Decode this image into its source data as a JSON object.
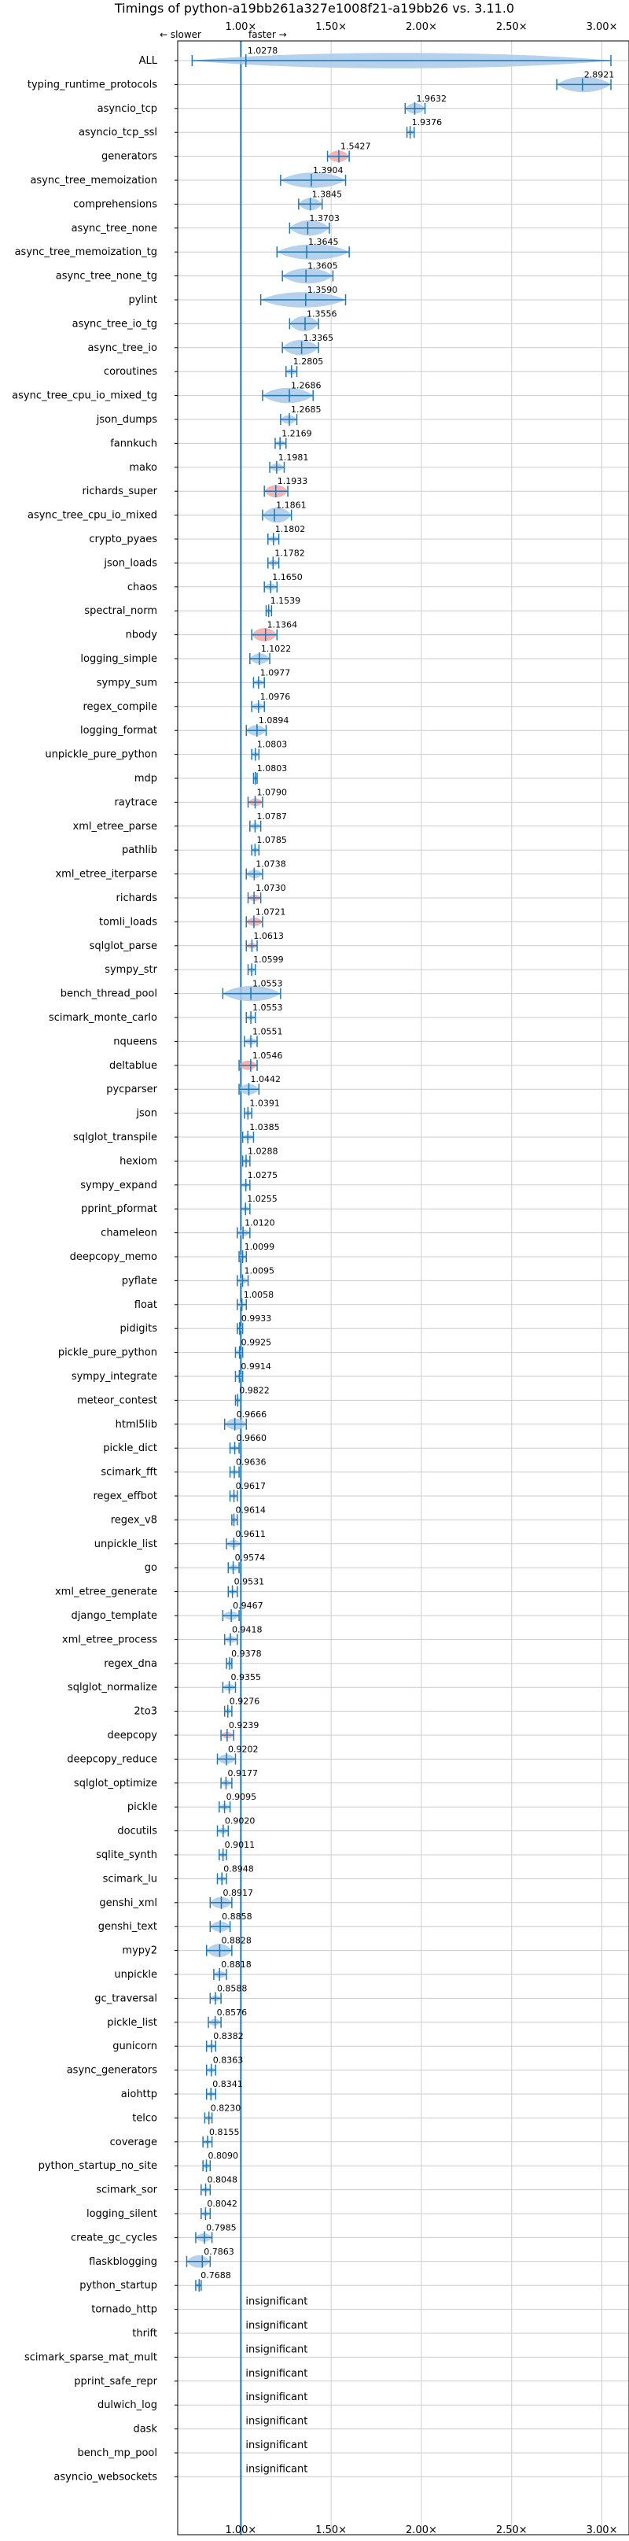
{
  "chart_data": {
    "type": "violin",
    "title": "Timings of python-a19bb261a327e1008f21-a19bb26 vs. 3.11.0",
    "direction_slower": "← slower",
    "direction_faster": "faster →",
    "xlim": [
      0.65,
      3.15
    ],
    "xticks": [
      1.0,
      1.5,
      2.0,
      2.5,
      3.0
    ],
    "xtick_labels": [
      "1.00×",
      "1.50×",
      "2.00×",
      "2.50×",
      "3.00×"
    ],
    "grid": true,
    "colors": {
      "faster": "#a8c9e8",
      "slower": "#f4a6a6",
      "stroke": "#1f77b4",
      "reference": "#1f77b4"
    },
    "benchmarks": [
      {
        "name": "ALL",
        "value": 1.0278,
        "label": "1.0278",
        "min": 0.73,
        "max": 3.05,
        "kind": "faster"
      },
      {
        "name": "typing_runtime_protocols",
        "value": 2.8921,
        "label": "2.8921",
        "min": 2.75,
        "max": 3.05,
        "kind": "faster"
      },
      {
        "name": "asyncio_tcp",
        "value": 1.9632,
        "label": "1.9632",
        "min": 1.91,
        "max": 2.02,
        "kind": "faster"
      },
      {
        "name": "asyncio_tcp_ssl",
        "value": 1.9376,
        "label": "1.9376",
        "min": 1.92,
        "max": 1.96,
        "kind": "faster"
      },
      {
        "name": "generators",
        "value": 1.5427,
        "label": "1.5427",
        "min": 1.48,
        "max": 1.6,
        "kind": "slower"
      },
      {
        "name": "async_tree_memoization",
        "value": 1.3904,
        "label": "1.3904",
        "min": 1.22,
        "max": 1.58,
        "kind": "faster"
      },
      {
        "name": "comprehensions",
        "value": 1.3845,
        "label": "1.3845",
        "min": 1.32,
        "max": 1.45,
        "kind": "faster"
      },
      {
        "name": "async_tree_none",
        "value": 1.3703,
        "label": "1.3703",
        "min": 1.27,
        "max": 1.49,
        "kind": "faster"
      },
      {
        "name": "async_tree_memoization_tg",
        "value": 1.3645,
        "label": "1.3645",
        "min": 1.2,
        "max": 1.6,
        "kind": "faster"
      },
      {
        "name": "async_tree_none_tg",
        "value": 1.3605,
        "label": "1.3605",
        "min": 1.23,
        "max": 1.51,
        "kind": "faster"
      },
      {
        "name": "pylint",
        "value": 1.359,
        "label": "1.3590",
        "min": 1.11,
        "max": 1.58,
        "kind": "faster"
      },
      {
        "name": "async_tree_io_tg",
        "value": 1.3556,
        "label": "1.3556",
        "min": 1.27,
        "max": 1.43,
        "kind": "faster"
      },
      {
        "name": "async_tree_io",
        "value": 1.3365,
        "label": "1.3365",
        "min": 1.23,
        "max": 1.43,
        "kind": "faster"
      },
      {
        "name": "coroutines",
        "value": 1.2805,
        "label": "1.2805",
        "min": 1.25,
        "max": 1.31,
        "kind": "faster"
      },
      {
        "name": "async_tree_cpu_io_mixed_tg",
        "value": 1.2686,
        "label": "1.2686",
        "min": 1.12,
        "max": 1.4,
        "kind": "faster"
      },
      {
        "name": "json_dumps",
        "value": 1.2685,
        "label": "1.2685",
        "min": 1.22,
        "max": 1.31,
        "kind": "faster"
      },
      {
        "name": "fannkuch",
        "value": 1.2169,
        "label": "1.2169",
        "min": 1.19,
        "max": 1.25,
        "kind": "faster"
      },
      {
        "name": "mako",
        "value": 1.1981,
        "label": "1.1981",
        "min": 1.16,
        "max": 1.24,
        "kind": "faster"
      },
      {
        "name": "richards_super",
        "value": 1.1933,
        "label": "1.1933",
        "min": 1.13,
        "max": 1.26,
        "kind": "slower"
      },
      {
        "name": "async_tree_cpu_io_mixed",
        "value": 1.1861,
        "label": "1.1861",
        "min": 1.12,
        "max": 1.28,
        "kind": "faster"
      },
      {
        "name": "crypto_pyaes",
        "value": 1.1802,
        "label": "1.1802",
        "min": 1.15,
        "max": 1.21,
        "kind": "faster"
      },
      {
        "name": "json_loads",
        "value": 1.1782,
        "label": "1.1782",
        "min": 1.15,
        "max": 1.21,
        "kind": "faster"
      },
      {
        "name": "chaos",
        "value": 1.165,
        "label": "1.1650",
        "min": 1.13,
        "max": 1.2,
        "kind": "faster"
      },
      {
        "name": "spectral_norm",
        "value": 1.1539,
        "label": "1.1539",
        "min": 1.14,
        "max": 1.17,
        "kind": "faster"
      },
      {
        "name": "nbody",
        "value": 1.1364,
        "label": "1.1364",
        "min": 1.06,
        "max": 1.2,
        "kind": "slower"
      },
      {
        "name": "logging_simple",
        "value": 1.1022,
        "label": "1.1022",
        "min": 1.05,
        "max": 1.16,
        "kind": "faster"
      },
      {
        "name": "sympy_sum",
        "value": 1.0977,
        "label": "1.0977",
        "min": 1.07,
        "max": 1.13,
        "kind": "faster"
      },
      {
        "name": "regex_compile",
        "value": 1.0976,
        "label": "1.0976",
        "min": 1.06,
        "max": 1.13,
        "kind": "faster"
      },
      {
        "name": "logging_format",
        "value": 1.0894,
        "label": "1.0894",
        "min": 1.03,
        "max": 1.14,
        "kind": "faster"
      },
      {
        "name": "unpickle_pure_python",
        "value": 1.0803,
        "label": "1.0803",
        "min": 1.06,
        "max": 1.1,
        "kind": "faster"
      },
      {
        "name": "mdp",
        "value": 1.0803,
        "label": "1.0803",
        "min": 1.07,
        "max": 1.09,
        "kind": "faster"
      },
      {
        "name": "raytrace",
        "value": 1.079,
        "label": "1.0790",
        "min": 1.04,
        "max": 1.12,
        "kind": "slower"
      },
      {
        "name": "xml_etree_parse",
        "value": 1.0787,
        "label": "1.0787",
        "min": 1.05,
        "max": 1.11,
        "kind": "faster"
      },
      {
        "name": "pathlib",
        "value": 1.0785,
        "label": "1.0785",
        "min": 1.06,
        "max": 1.1,
        "kind": "faster"
      },
      {
        "name": "xml_etree_iterparse",
        "value": 1.0738,
        "label": "1.0738",
        "min": 1.03,
        "max": 1.12,
        "kind": "faster"
      },
      {
        "name": "richards",
        "value": 1.073,
        "label": "1.0730",
        "min": 1.04,
        "max": 1.11,
        "kind": "slower"
      },
      {
        "name": "tomli_loads",
        "value": 1.0721,
        "label": "1.0721",
        "min": 1.03,
        "max": 1.12,
        "kind": "slower"
      },
      {
        "name": "sqlglot_parse",
        "value": 1.0613,
        "label": "1.0613",
        "min": 1.03,
        "max": 1.09,
        "kind": "slower"
      },
      {
        "name": "sympy_str",
        "value": 1.0599,
        "label": "1.0599",
        "min": 1.04,
        "max": 1.08,
        "kind": "faster"
      },
      {
        "name": "bench_thread_pool",
        "value": 1.0553,
        "label": "1.0553",
        "min": 0.9,
        "max": 1.22,
        "kind": "faster"
      },
      {
        "name": "scimark_monte_carlo",
        "value": 1.0553,
        "label": "1.0553",
        "min": 1.03,
        "max": 1.08,
        "kind": "faster"
      },
      {
        "name": "nqueens",
        "value": 1.0551,
        "label": "1.0551",
        "min": 1.02,
        "max": 1.09,
        "kind": "faster"
      },
      {
        "name": "deltablue",
        "value": 1.0546,
        "label": "1.0546",
        "min": 0.99,
        "max": 1.09,
        "kind": "slower"
      },
      {
        "name": "pycparser",
        "value": 1.0442,
        "label": "1.0442",
        "min": 0.99,
        "max": 1.1,
        "kind": "faster"
      },
      {
        "name": "json",
        "value": 1.0391,
        "label": "1.0391",
        "min": 1.02,
        "max": 1.06,
        "kind": "faster"
      },
      {
        "name": "sqlglot_transpile",
        "value": 1.0385,
        "label": "1.0385",
        "min": 1.01,
        "max": 1.07,
        "kind": "faster"
      },
      {
        "name": "hexiom",
        "value": 1.0288,
        "label": "1.0288",
        "min": 1.01,
        "max": 1.05,
        "kind": "faster"
      },
      {
        "name": "sympy_expand",
        "value": 1.0275,
        "label": "1.0275",
        "min": 1.0,
        "max": 1.05,
        "kind": "faster"
      },
      {
        "name": "pprint_pformat",
        "value": 1.0255,
        "label": "1.0255",
        "min": 1.0,
        "max": 1.05,
        "kind": "faster"
      },
      {
        "name": "chameleon",
        "value": 1.012,
        "label": "1.0120",
        "min": 0.98,
        "max": 1.05,
        "kind": "faster"
      },
      {
        "name": "deepcopy_memo",
        "value": 1.0099,
        "label": "1.0099",
        "min": 0.99,
        "max": 1.03,
        "kind": "faster"
      },
      {
        "name": "pyflate",
        "value": 1.0095,
        "label": "1.0095",
        "min": 0.98,
        "max": 1.04,
        "kind": "faster"
      },
      {
        "name": "float",
        "value": 1.0058,
        "label": "1.0058",
        "min": 0.98,
        "max": 1.03,
        "kind": "faster"
      },
      {
        "name": "pidigits",
        "value": 0.9933,
        "label": "0.9933",
        "min": 0.98,
        "max": 1.01,
        "kind": "faster"
      },
      {
        "name": "pickle_pure_python",
        "value": 0.9925,
        "label": "0.9925",
        "min": 0.97,
        "max": 1.01,
        "kind": "faster"
      },
      {
        "name": "sympy_integrate",
        "value": 0.9914,
        "label": "0.9914",
        "min": 0.97,
        "max": 1.01,
        "kind": "faster"
      },
      {
        "name": "meteor_contest",
        "value": 0.9822,
        "label": "0.9822",
        "min": 0.97,
        "max": 1.0,
        "kind": "faster"
      },
      {
        "name": "html5lib",
        "value": 0.9666,
        "label": "0.9666",
        "min": 0.91,
        "max": 1.03,
        "kind": "faster"
      },
      {
        "name": "pickle_dict",
        "value": 0.966,
        "label": "0.9660",
        "min": 0.94,
        "max": 0.99,
        "kind": "faster"
      },
      {
        "name": "scimark_fft",
        "value": 0.9636,
        "label": "0.9636",
        "min": 0.94,
        "max": 0.99,
        "kind": "faster"
      },
      {
        "name": "regex_effbot",
        "value": 0.9617,
        "label": "0.9617",
        "min": 0.94,
        "max": 0.98,
        "kind": "faster"
      },
      {
        "name": "regex_v8",
        "value": 0.9614,
        "label": "0.9614",
        "min": 0.95,
        "max": 0.98,
        "kind": "faster"
      },
      {
        "name": "unpickle_list",
        "value": 0.9611,
        "label": "0.9611",
        "min": 0.92,
        "max": 1.0,
        "kind": "faster"
      },
      {
        "name": "go",
        "value": 0.9574,
        "label": "0.9574",
        "min": 0.93,
        "max": 0.99,
        "kind": "faster"
      },
      {
        "name": "xml_etree_generate",
        "value": 0.9531,
        "label": "0.9531",
        "min": 0.93,
        "max": 0.98,
        "kind": "faster"
      },
      {
        "name": "django_template",
        "value": 0.9467,
        "label": "0.9467",
        "min": 0.9,
        "max": 0.99,
        "kind": "faster"
      },
      {
        "name": "xml_etree_process",
        "value": 0.9418,
        "label": "0.9418",
        "min": 0.91,
        "max": 0.98,
        "kind": "faster"
      },
      {
        "name": "regex_dna",
        "value": 0.9378,
        "label": "0.9378",
        "min": 0.92,
        "max": 0.95,
        "kind": "faster"
      },
      {
        "name": "sqlglot_normalize",
        "value": 0.9355,
        "label": "0.9355",
        "min": 0.9,
        "max": 0.97,
        "kind": "faster"
      },
      {
        "name": "2to3",
        "value": 0.9276,
        "label": "0.9276",
        "min": 0.91,
        "max": 0.95,
        "kind": "faster"
      },
      {
        "name": "deepcopy",
        "value": 0.9239,
        "label": "0.9239",
        "min": 0.89,
        "max": 0.96,
        "kind": "slower"
      },
      {
        "name": "deepcopy_reduce",
        "value": 0.9202,
        "label": "0.9202",
        "min": 0.87,
        "max": 0.97,
        "kind": "faster"
      },
      {
        "name": "sqlglot_optimize",
        "value": 0.9177,
        "label": "0.9177",
        "min": 0.89,
        "max": 0.95,
        "kind": "faster"
      },
      {
        "name": "pickle",
        "value": 0.9095,
        "label": "0.9095",
        "min": 0.88,
        "max": 0.94,
        "kind": "faster"
      },
      {
        "name": "docutils",
        "value": 0.902,
        "label": "0.9020",
        "min": 0.87,
        "max": 0.93,
        "kind": "faster"
      },
      {
        "name": "sqlite_synth",
        "value": 0.9011,
        "label": "0.9011",
        "min": 0.88,
        "max": 0.92,
        "kind": "faster"
      },
      {
        "name": "scimark_lu",
        "value": 0.8948,
        "label": "0.8948",
        "min": 0.87,
        "max": 0.92,
        "kind": "faster"
      },
      {
        "name": "genshi_xml",
        "value": 0.8917,
        "label": "0.8917",
        "min": 0.83,
        "max": 0.95,
        "kind": "faster"
      },
      {
        "name": "genshi_text",
        "value": 0.8858,
        "label": "0.8858",
        "min": 0.83,
        "max": 0.94,
        "kind": "faster"
      },
      {
        "name": "mypy2",
        "value": 0.8828,
        "label": "0.8828",
        "min": 0.81,
        "max": 0.95,
        "kind": "faster"
      },
      {
        "name": "unpickle",
        "value": 0.8818,
        "label": "0.8818",
        "min": 0.85,
        "max": 0.92,
        "kind": "faster"
      },
      {
        "name": "gc_traversal",
        "value": 0.8588,
        "label": "0.8588",
        "min": 0.83,
        "max": 0.89,
        "kind": "faster"
      },
      {
        "name": "pickle_list",
        "value": 0.8576,
        "label": "0.8576",
        "min": 0.82,
        "max": 0.89,
        "kind": "faster"
      },
      {
        "name": "gunicorn",
        "value": 0.8382,
        "label": "0.8382",
        "min": 0.81,
        "max": 0.86,
        "kind": "faster"
      },
      {
        "name": "async_generators",
        "value": 0.8363,
        "label": "0.8363",
        "min": 0.81,
        "max": 0.86,
        "kind": "faster"
      },
      {
        "name": "aiohttp",
        "value": 0.8341,
        "label": "0.8341",
        "min": 0.81,
        "max": 0.86,
        "kind": "faster"
      },
      {
        "name": "telco",
        "value": 0.823,
        "label": "0.8230",
        "min": 0.8,
        "max": 0.84,
        "kind": "faster"
      },
      {
        "name": "coverage",
        "value": 0.8155,
        "label": "0.8155",
        "min": 0.79,
        "max": 0.84,
        "kind": "faster"
      },
      {
        "name": "python_startup_no_site",
        "value": 0.809,
        "label": "0.8090",
        "min": 0.79,
        "max": 0.83,
        "kind": "faster"
      },
      {
        "name": "scimark_sor",
        "value": 0.8048,
        "label": "0.8048",
        "min": 0.78,
        "max": 0.83,
        "kind": "faster"
      },
      {
        "name": "logging_silent",
        "value": 0.8042,
        "label": "0.8042",
        "min": 0.78,
        "max": 0.83,
        "kind": "faster"
      },
      {
        "name": "create_gc_cycles",
        "value": 0.7985,
        "label": "0.7985",
        "min": 0.75,
        "max": 0.84,
        "kind": "faster"
      },
      {
        "name": "flaskblogging",
        "value": 0.7863,
        "label": "0.7863",
        "min": 0.7,
        "max": 0.83,
        "kind": "faster"
      },
      {
        "name": "python_startup",
        "value": 0.7688,
        "label": "0.7688",
        "min": 0.75,
        "max": 0.78,
        "kind": "faster"
      },
      {
        "name": "tornado_http",
        "value": null,
        "label": "insignificant",
        "kind": "insignificant"
      },
      {
        "name": "thrift",
        "value": null,
        "label": "insignificant",
        "kind": "insignificant"
      },
      {
        "name": "scimark_sparse_mat_mult",
        "value": null,
        "label": "insignificant",
        "kind": "insignificant"
      },
      {
        "name": "pprint_safe_repr",
        "value": null,
        "label": "insignificant",
        "kind": "insignificant"
      },
      {
        "name": "dulwich_log",
        "value": null,
        "label": "insignificant",
        "kind": "insignificant"
      },
      {
        "name": "dask",
        "value": null,
        "label": "insignificant",
        "kind": "insignificant"
      },
      {
        "name": "bench_mp_pool",
        "value": null,
        "label": "insignificant",
        "kind": "insignificant"
      },
      {
        "name": "asyncio_websockets",
        "value": null,
        "label": "insignificant",
        "kind": "insignificant"
      }
    ]
  }
}
